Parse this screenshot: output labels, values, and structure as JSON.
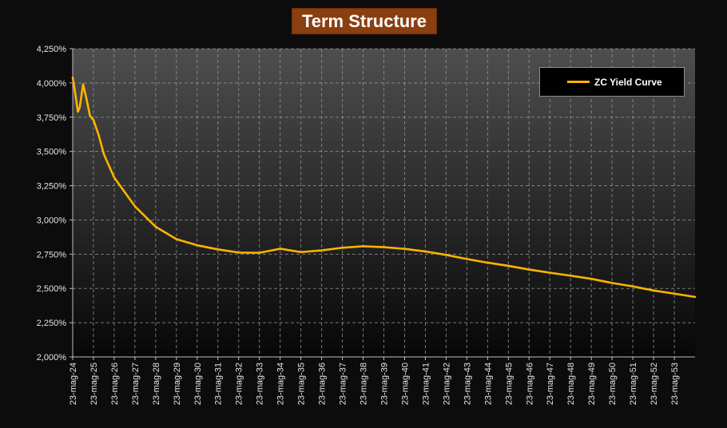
{
  "chart_data": {
    "type": "line",
    "title": "Term Structure",
    "xlabel": "",
    "ylabel": "",
    "x_tick_labels": [
      "23-mag-24",
      "23-mag-25",
      "23-mag-26",
      "23-mag-27",
      "23-mag-28",
      "23-mag-29",
      "23-mag-30",
      "23-mag-31",
      "23-mag-32",
      "23-mag-33",
      "23-mag-34",
      "23-mag-35",
      "23-mag-36",
      "23-mag-37",
      "23-mag-38",
      "23-mag-39",
      "23-mag-40",
      "23-mag-41",
      "23-mag-42",
      "23-mag-43",
      "23-mag-44",
      "23-mag-45",
      "23-mag-46",
      "23-mag-47",
      "23-mag-48",
      "23-mag-49",
      "23-mag-50",
      "23-mag-51",
      "23-mag-52",
      "23-mag-53"
    ],
    "y_tick_labels": [
      "2,000%",
      "2,250%",
      "2,500%",
      "2,750%",
      "3,000%",
      "3,250%",
      "3,500%",
      "3,750%",
      "4,000%",
      "4,250%"
    ],
    "x_range": [
      "2024-05-23",
      "2054-05-23"
    ],
    "ylim": [
      2.0,
      4.25
    ],
    "grid": true,
    "legend": "top-right",
    "colors": {
      "line": "#ffb400"
    },
    "series": [
      {
        "name": "ZC Yield Curve",
        "points": [
          [
            "2024-05-23",
            4.04
          ],
          [
            "2024-06-23",
            3.96
          ],
          [
            "2024-08-23",
            3.79
          ],
          [
            "2024-09-23",
            3.82
          ],
          [
            "2024-11-23",
            3.99
          ],
          [
            "2025-01-23",
            3.88
          ],
          [
            "2025-03-23",
            3.76
          ],
          [
            "2025-05-23",
            3.73
          ],
          [
            "2025-08-23",
            3.62
          ],
          [
            "2025-11-23",
            3.48
          ],
          [
            "2026-05-23",
            3.31
          ],
          [
            "2027-05-23",
            3.1
          ],
          [
            "2028-05-23",
            2.95
          ],
          [
            "2029-05-23",
            2.86
          ],
          [
            "2030-05-23",
            2.815
          ],
          [
            "2031-05-23",
            2.785
          ],
          [
            "2032-05-23",
            2.762
          ],
          [
            "2033-05-23",
            2.76
          ],
          [
            "2034-05-23",
            2.79
          ],
          [
            "2035-05-23",
            2.765
          ],
          [
            "2036-05-23",
            2.778
          ],
          [
            "2037-05-23",
            2.797
          ],
          [
            "2038-05-23",
            2.808
          ],
          [
            "2039-05-23",
            2.801
          ],
          [
            "2040-05-23",
            2.789
          ],
          [
            "2041-05-23",
            2.77
          ],
          [
            "2042-05-23",
            2.745
          ],
          [
            "2043-05-23",
            2.715
          ],
          [
            "2044-05-23",
            2.688
          ],
          [
            "2045-05-23",
            2.665
          ],
          [
            "2046-05-23",
            2.638
          ],
          [
            "2047-05-23",
            2.615
          ],
          [
            "2048-05-23",
            2.593
          ],
          [
            "2049-05-23",
            2.57
          ],
          [
            "2050-05-23",
            2.54
          ],
          [
            "2051-05-23",
            2.515
          ],
          [
            "2052-05-23",
            2.485
          ],
          [
            "2053-05-23",
            2.462
          ],
          [
            "2054-05-23",
            2.438
          ]
        ]
      }
    ]
  }
}
